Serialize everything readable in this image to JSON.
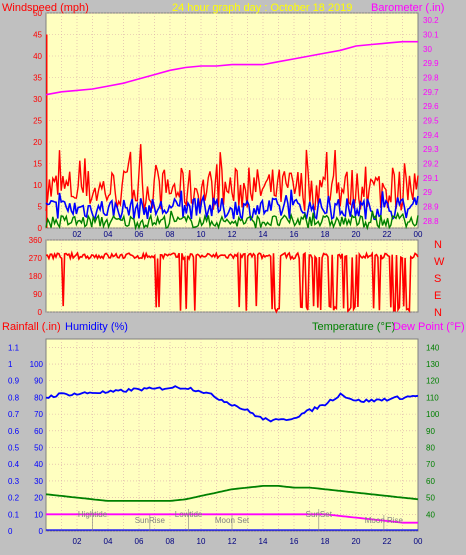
{
  "header": {
    "left_title": "Windspeed (mph)",
    "center_title": "24 hour graph day : October 18 2019",
    "right_title": "Barometer (.in)"
  },
  "bottom_header": {
    "rainfall": "Rainfall (.in)",
    "humidity": "Humidity (%)",
    "temperature": "Temperature (°F)",
    "dewpoint": "Dew Point (°F)"
  },
  "compass": [
    "N",
    "W",
    "S",
    "E",
    "N"
  ],
  "colors": {
    "background": "#c0c0c0",
    "plot_bg": "#ffffc0",
    "grid": "#d8a8a8",
    "windspeed": "#ff0000",
    "gust": "#0000ff",
    "avg_wind": "#008000",
    "barometer": "#ff00ff",
    "humidity": "#0000ff",
    "temperature": "#008000",
    "dewpoint": "#ff00ff",
    "rainfall": "#0000ff",
    "title": "#ffff00"
  },
  "chart_data": [
    {
      "type": "line",
      "name": "wind_and_barometer",
      "x_ticks": [
        "02",
        "04",
        "06",
        "08",
        "10",
        "12",
        "14",
        "16",
        "18",
        "20",
        "22",
        "00"
      ],
      "y_left_ticks": [
        "0",
        "5",
        "10",
        "15",
        "20",
        "25",
        "30",
        "35",
        "40",
        "45",
        "50"
      ],
      "y_left_lim": [
        0,
        50
      ],
      "y_right_ticks": [
        "28.8",
        "28.9",
        "29",
        "29.1",
        "29.2",
        "29.3",
        "29.4",
        "29.5",
        "29.6",
        "29.7",
        "29.8",
        "29.9",
        "30",
        "30.1",
        "30.2"
      ],
      "y_right_lim": [
        28.75,
        30.25
      ],
      "series": [
        {
          "name": "Barometer",
          "axis": "right",
          "x": [
            0,
            1,
            2,
            3,
            4,
            5,
            6,
            7,
            8,
            9,
            10,
            11,
            12,
            13,
            14,
            15,
            16,
            17,
            18,
            19,
            20,
            21,
            22,
            23,
            24
          ],
          "values": [
            29.68,
            29.7,
            29.71,
            29.72,
            29.74,
            29.76,
            29.79,
            29.82,
            29.85,
            29.87,
            29.88,
            29.88,
            29.89,
            29.89,
            29.89,
            29.91,
            29.93,
            29.95,
            29.97,
            29.99,
            30.02,
            30.03,
            30.04,
            30.05,
            30.05
          ]
        }
      ],
      "wind_bands": {
        "speed_typical": [
          4,
          14
        ],
        "gust_typical": [
          2,
          7
        ],
        "avg_typical": [
          0,
          3
        ],
        "spike_max": 45
      }
    },
    {
      "type": "scatter",
      "name": "wind_direction",
      "y_ticks": [
        "360",
        "270",
        "180",
        "90",
        "0"
      ],
      "y_lim": [
        0,
        360
      ],
      "typical_value": 280
    },
    {
      "type": "line",
      "name": "humidity_temperature",
      "x_ticks": [
        "02",
        "04",
        "06",
        "08",
        "10",
        "12",
        "14",
        "16",
        "18",
        "20",
        "22",
        "00"
      ],
      "rain_ticks": [
        "0",
        "0.1",
        "0.2",
        "0.3",
        "0.4",
        "0.5",
        "0.6",
        "0.7",
        "0.8",
        "0.9",
        "1",
        "1.1"
      ],
      "rain_lim": [
        0,
        1.15
      ],
      "humidity_ticks": [
        "0",
        "10",
        "20",
        "30",
        "40",
        "50",
        "60",
        "70",
        "80",
        "90",
        "100"
      ],
      "humidity_lim": [
        0,
        115
      ],
      "temp_ticks": [
        "40",
        "50",
        "60",
        "70",
        "80",
        "90",
        "100",
        "110",
        "120",
        "130",
        "140"
      ],
      "temp_lim": [
        30,
        145
      ],
      "series": [
        {
          "name": "Humidity",
          "x": [
            0,
            1,
            2,
            3,
            4,
            5,
            6,
            7,
            8,
            9,
            10,
            11,
            12,
            13,
            14,
            15,
            16,
            17,
            18,
            19,
            20,
            21,
            22,
            23,
            24
          ],
          "values": [
            80,
            82,
            82,
            83,
            83,
            84,
            85,
            85,
            86,
            86,
            84,
            80,
            76,
            72,
            67,
            66,
            68,
            72,
            76,
            82,
            78,
            78,
            79,
            80,
            81
          ]
        },
        {
          "name": "Temperature",
          "x": [
            0,
            1,
            2,
            3,
            4,
            5,
            6,
            7,
            8,
            9,
            10,
            11,
            12,
            13,
            14,
            15,
            16,
            17,
            18,
            19,
            20,
            21,
            22,
            23,
            24
          ],
          "values": [
            52,
            51,
            50,
            49,
            48,
            48,
            48,
            48,
            48,
            49,
            51,
            53,
            55,
            56,
            57,
            57,
            56,
            56,
            55,
            54,
            53,
            52,
            51,
            50,
            49
          ]
        },
        {
          "name": "Dew Point",
          "x": [
            0,
            1,
            2,
            3,
            4,
            5,
            6,
            7,
            8,
            9,
            10,
            11,
            12,
            13,
            14,
            15,
            16,
            17,
            18,
            19,
            20,
            21,
            22,
            23,
            24
          ],
          "values": [
            40,
            40,
            40,
            40,
            40,
            40,
            40,
            40,
            40,
            40,
            40,
            40,
            40,
            40,
            40,
            40,
            40,
            40,
            40,
            39,
            38,
            37,
            36,
            35,
            35
          ]
        }
      ],
      "annotations": [
        {
          "label": "Hightide",
          "x": 3.0
        },
        {
          "label": "SunRise",
          "x": 6.7
        },
        {
          "label": "Lowtide",
          "x": 9.2
        },
        {
          "label": "Moon Set",
          "x": 12.0
        },
        {
          "label": "SunSet",
          "x": 17.6
        },
        {
          "label": "Moon Rise",
          "x": 21.8
        }
      ]
    }
  ]
}
